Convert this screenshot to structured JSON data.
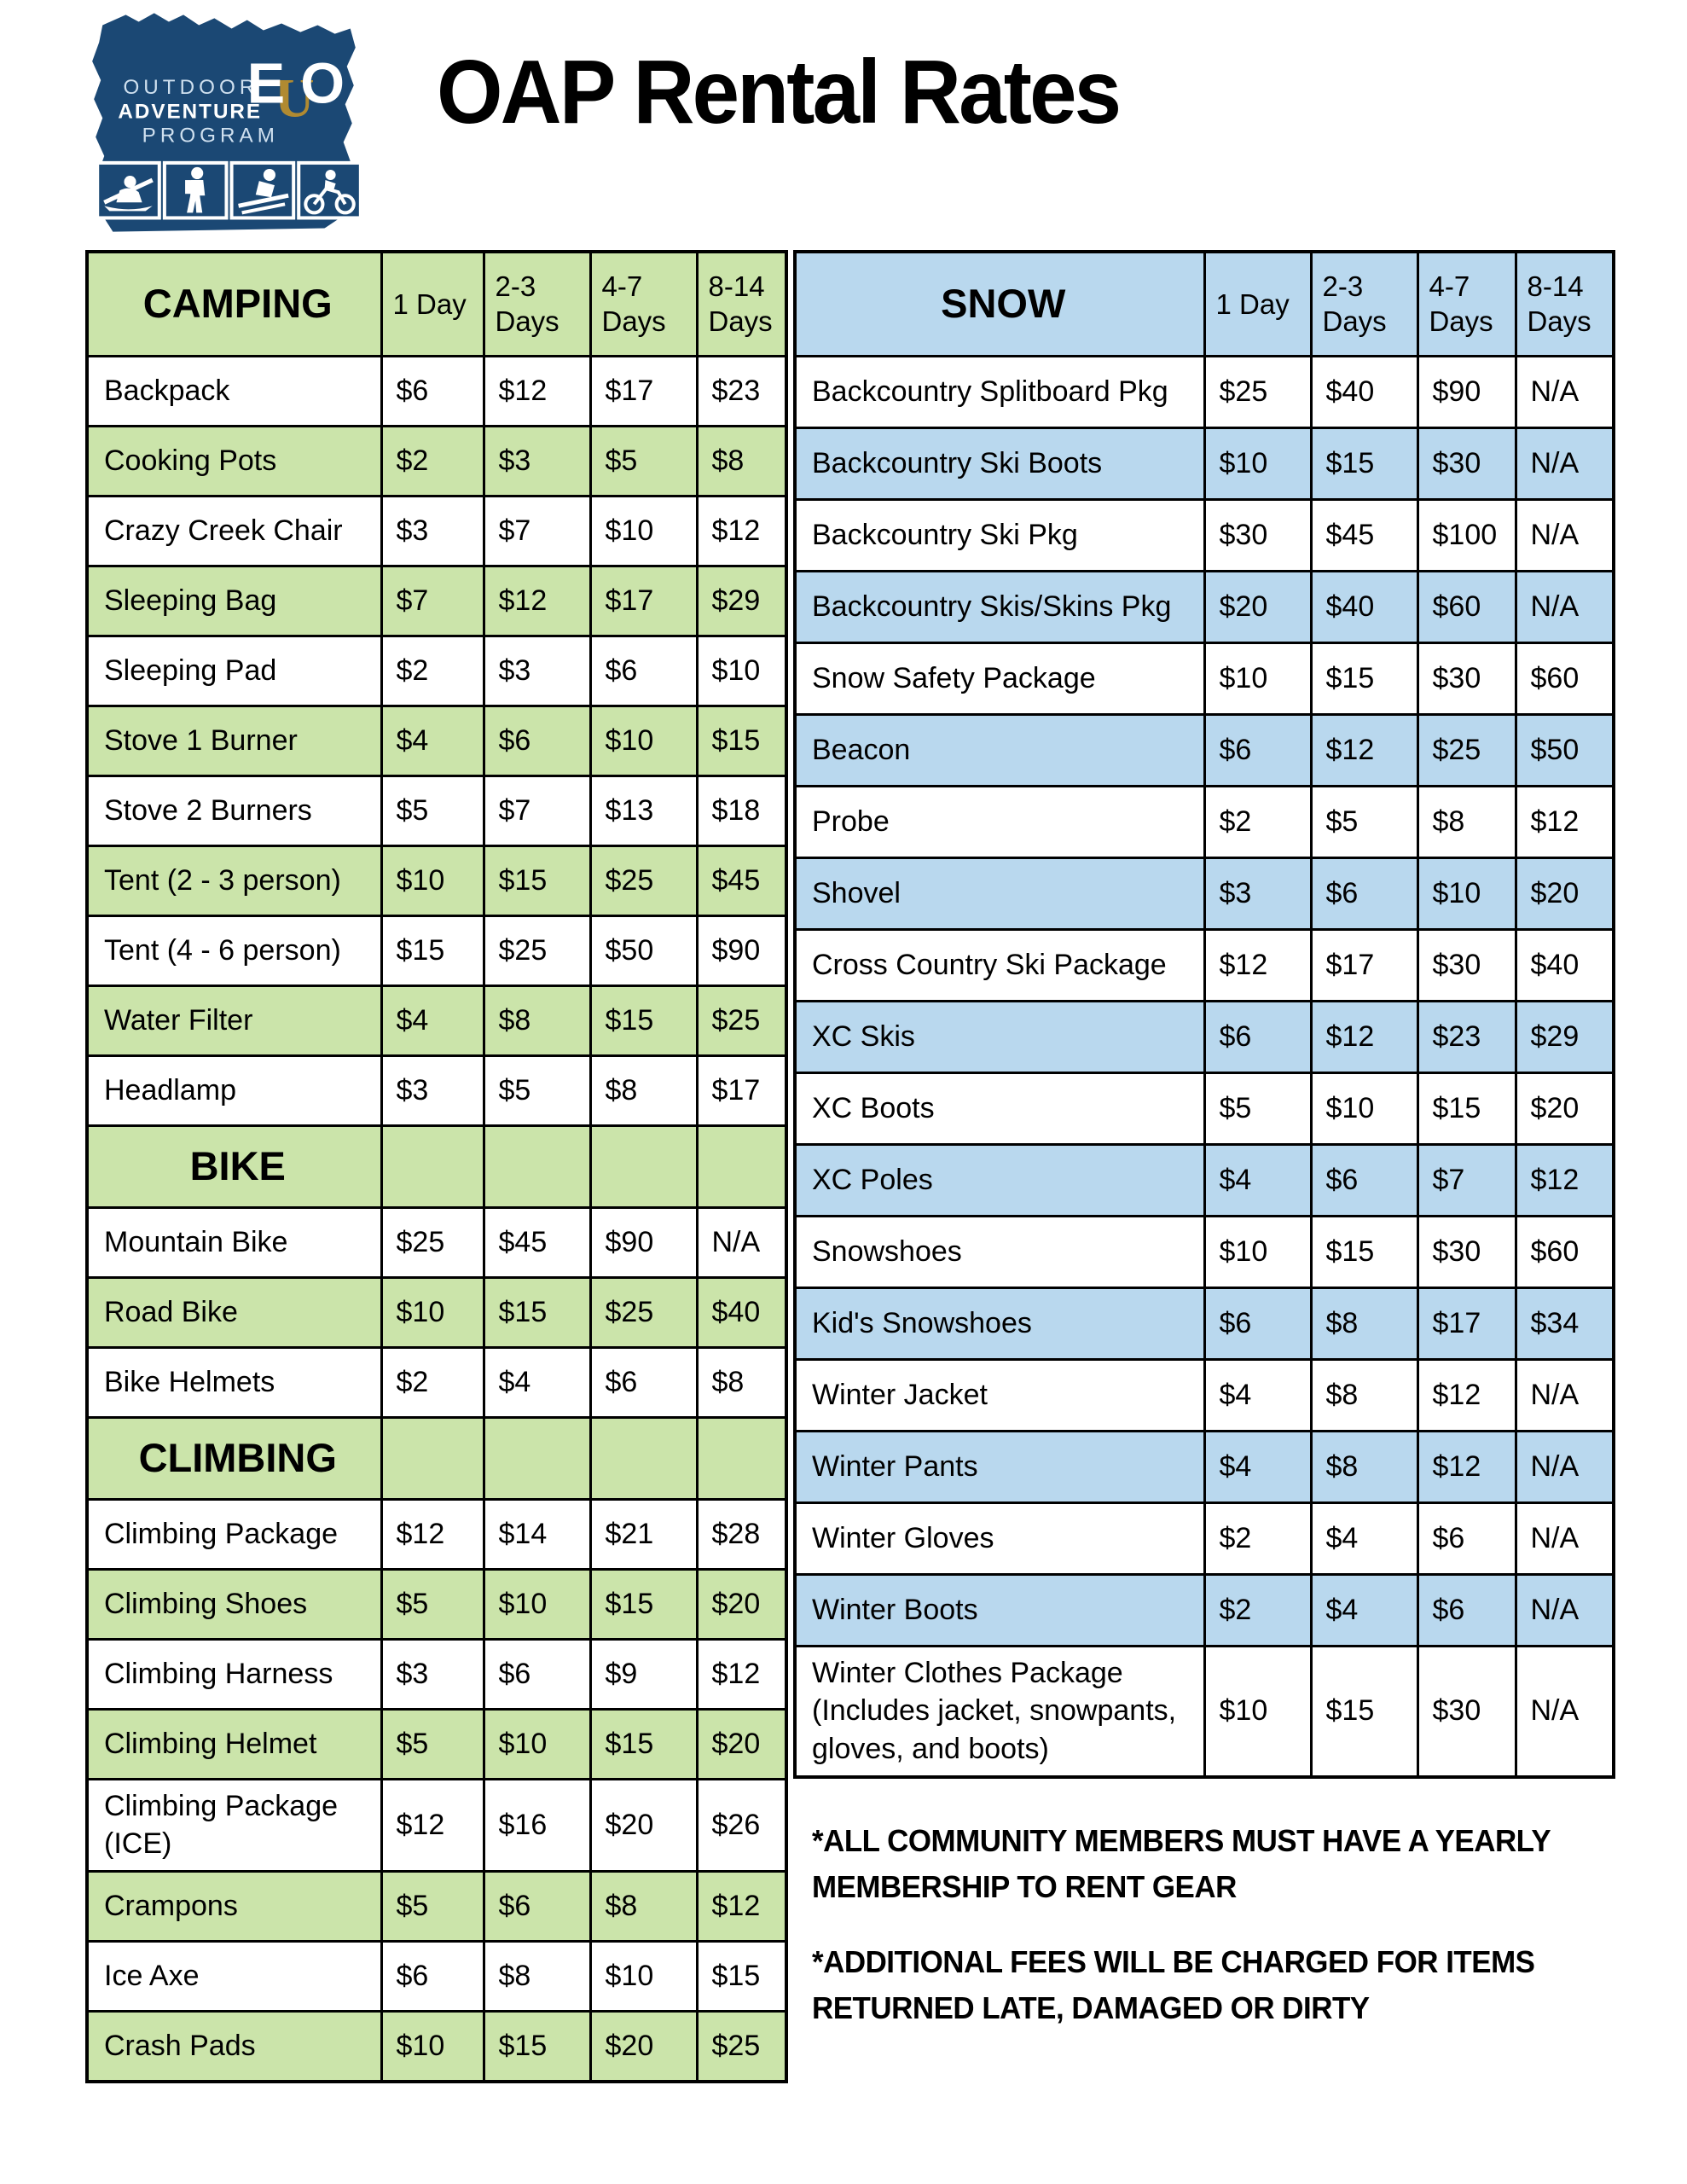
{
  "page": {
    "title": "OAP Rental Rates"
  },
  "logo": {
    "line1": "OUTDOOR",
    "line2": "ADVENTURE",
    "line3": "PROGRAM",
    "monogram_e": "E",
    "monogram_o": "O",
    "monogram_u": "U",
    "colors": {
      "navy": "#1b4874",
      "gold": "#b08a31",
      "light_text": "#cfe0ef"
    }
  },
  "columns": [
    "1 Day",
    "2-3 Days",
    "4-7 Days",
    "8-14 Days"
  ],
  "left_table": {
    "accent": "#cbe4aa",
    "sections": [
      {
        "name": "CAMPING",
        "show_columns": true,
        "rows": [
          {
            "item": "Backpack",
            "prices": [
              "$6",
              "$12",
              "$17",
              "$23"
            ]
          },
          {
            "item": "Cooking Pots",
            "prices": [
              "$2",
              "$3",
              "$5",
              "$8"
            ]
          },
          {
            "item": "Crazy Creek Chair",
            "prices": [
              "$3",
              "$7",
              "$10",
              "$12"
            ]
          },
          {
            "item": "Sleeping Bag",
            "prices": [
              "$7",
              "$12",
              "$17",
              "$29"
            ]
          },
          {
            "item": "Sleeping Pad",
            "prices": [
              "$2",
              "$3",
              "$6",
              "$10"
            ]
          },
          {
            "item": "Stove 1 Burner",
            "prices": [
              "$4",
              "$6",
              "$10",
              "$15"
            ]
          },
          {
            "item": "Stove 2 Burners",
            "prices": [
              "$5",
              "$7",
              "$13",
              "$18"
            ]
          },
          {
            "item": "Tent (2 - 3 person)",
            "prices": [
              "$10",
              "$15",
              "$25",
              "$45"
            ]
          },
          {
            "item": "Tent (4 - 6 person)",
            "prices": [
              "$15",
              "$25",
              "$50",
              "$90"
            ]
          },
          {
            "item": "Water Filter",
            "prices": [
              "$4",
              "$8",
              "$15",
              "$25"
            ]
          },
          {
            "item": "Headlamp",
            "prices": [
              "$3",
              "$5",
              "$8",
              "$17"
            ]
          }
        ]
      },
      {
        "name": "BIKE",
        "show_columns": false,
        "rows": [
          {
            "item": "Mountain Bike",
            "prices": [
              "$25",
              "$45",
              "$90",
              "N/A"
            ]
          },
          {
            "item": "Road Bike",
            "prices": [
              "$10",
              "$15",
              "$25",
              "$40"
            ]
          },
          {
            "item": "Bike Helmets",
            "prices": [
              "$2",
              "$4",
              "$6",
              "$8"
            ]
          }
        ]
      },
      {
        "name": "CLIMBING",
        "show_columns": false,
        "rows": [
          {
            "item": "Climbing Package",
            "prices": [
              "$12",
              "$14",
              "$21",
              "$28"
            ]
          },
          {
            "item": "Climbing Shoes",
            "prices": [
              "$5",
              "$10",
              "$15",
              "$20"
            ]
          },
          {
            "item": "Climbing Harness",
            "prices": [
              "$3",
              "$6",
              "$9",
              "$12"
            ]
          },
          {
            "item": "Climbing Helmet",
            "prices": [
              "$5",
              "$10",
              "$15",
              "$20"
            ]
          },
          {
            "item": "Climbing Package (ICE)",
            "prices": [
              "$12",
              "$16",
              "$20",
              "$26"
            ]
          },
          {
            "item": "Crampons",
            "prices": [
              "$5",
              "$6",
              "$8",
              "$12"
            ]
          },
          {
            "item": "Ice Axe",
            "prices": [
              "$6",
              "$8",
              "$10",
              "$15"
            ]
          },
          {
            "item": "Crash Pads",
            "prices": [
              "$10",
              "$15",
              "$20",
              "$25"
            ]
          }
        ]
      }
    ]
  },
  "right_table": {
    "accent": "#b9d8ee",
    "sections": [
      {
        "name": "SNOW",
        "show_columns": true,
        "rows": [
          {
            "item": "Backcountry Splitboard Pkg",
            "prices": [
              "$25",
              "$40",
              "$90",
              "N/A"
            ]
          },
          {
            "item": "Backcountry Ski Boots",
            "prices": [
              "$10",
              "$15",
              "$30",
              "N/A"
            ]
          },
          {
            "item": "Backcountry Ski Pkg",
            "prices": [
              "$30",
              "$45",
              "$100",
              "N/A"
            ]
          },
          {
            "item": "Backcountry Skis/Skins Pkg",
            "prices": [
              "$20",
              "$40",
              "$60",
              "N/A"
            ]
          },
          {
            "item": "Snow Safety Package",
            "prices": [
              "$10",
              "$15",
              "$30",
              "$60"
            ]
          },
          {
            "item": "Beacon",
            "prices": [
              "$6",
              "$12",
              "$25",
              "$50"
            ]
          },
          {
            "item": "Probe",
            "prices": [
              "$2",
              "$5",
              "$8",
              "$12"
            ]
          },
          {
            "item": "Shovel",
            "prices": [
              "$3",
              "$6",
              "$10",
              "$20"
            ]
          },
          {
            "item": "Cross Country Ski Package",
            "prices": [
              "$12",
              "$17",
              "$30",
              "$40"
            ]
          },
          {
            "item": "XC Skis",
            "prices": [
              "$6",
              "$12",
              "$23",
              "$29"
            ]
          },
          {
            "item": "XC Boots",
            "prices": [
              "$5",
              "$10",
              "$15",
              "$20"
            ]
          },
          {
            "item": "XC Poles",
            "prices": [
              "$4",
              "$6",
              "$7",
              "$12"
            ]
          },
          {
            "item": "Snowshoes",
            "prices": [
              "$10",
              "$15",
              "$30",
              "$60"
            ]
          },
          {
            "item": "Kid's Snowshoes",
            "prices": [
              "$6",
              "$8",
              "$17",
              "$34"
            ]
          },
          {
            "item": "Winter Jacket",
            "prices": [
              "$4",
              "$8",
              "$12",
              "N/A"
            ]
          },
          {
            "item": "Winter Pants",
            "prices": [
              "$4",
              "$8",
              "$12",
              "N/A"
            ]
          },
          {
            "item": "Winter Gloves",
            "prices": [
              "$2",
              "$4",
              "$6",
              "N/A"
            ]
          },
          {
            "item": "Winter Boots",
            "prices": [
              "$2",
              "$4",
              "$6",
              "N/A"
            ]
          },
          {
            "item": "Winter Clothes Package (Includes jacket, snowpants, gloves, and boots)",
            "prices": [
              "$10",
              "$15",
              "$30",
              "N/A"
            ]
          }
        ]
      }
    ]
  },
  "footnotes": [
    "*ALL COMMUNITY MEMBERS MUST HAVE A YEARLY MEMBERSHIP TO RENT GEAR",
    "*ADDITIONAL FEES WILL BE CHARGED FOR ITEMS RETURNED LATE, DAMAGED OR DIRTY"
  ]
}
